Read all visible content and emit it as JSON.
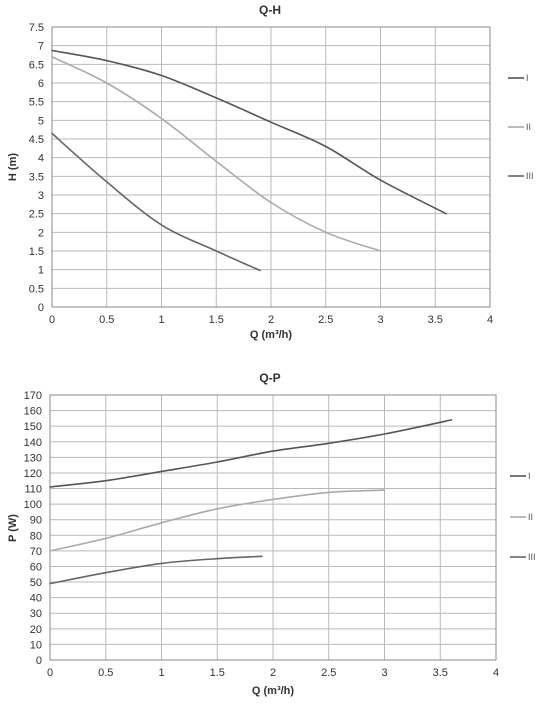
{
  "chart_data": [
    {
      "type": "line",
      "title": "Q-H",
      "xlabel": "Q (m³/h)",
      "ylabel": "H (m)",
      "xlim": [
        0,
        4
      ],
      "ylim": [
        0,
        7.5
      ],
      "xticks": [
        0,
        0.5,
        1,
        1.5,
        2,
        2.5,
        3,
        3.5,
        4
      ],
      "yticks": [
        0,
        0.5,
        1,
        1.5,
        2,
        2.5,
        3,
        3.5,
        4,
        4.5,
        5,
        5.5,
        6,
        6.5,
        7,
        7.5
      ],
      "grid": true,
      "legend_position": "right",
      "series": [
        {
          "name": "I",
          "color": "#555555",
          "x": [
            0,
            0.5,
            1,
            1.5,
            2,
            2.5,
            3,
            3.6
          ],
          "y": [
            6.87,
            6.6,
            6.2,
            5.6,
            4.95,
            4.3,
            3.4,
            2.5
          ]
        },
        {
          "name": "II",
          "color": "#aaaaaa",
          "x": [
            0,
            0.5,
            1,
            1.5,
            2,
            2.5,
            3
          ],
          "y": [
            6.7,
            6.0,
            5.05,
            3.9,
            2.8,
            2.0,
            1.5
          ]
        },
        {
          "name": "III",
          "color": "#666666",
          "x": [
            0,
            0.5,
            1,
            1.5,
            1.9
          ],
          "y": [
            4.65,
            3.35,
            2.2,
            1.5,
            0.98
          ]
        }
      ]
    },
    {
      "type": "line",
      "title": "Q-P",
      "xlabel": "Q (m³/h)",
      "ylabel": "P (W)",
      "xlim": [
        0,
        4
      ],
      "ylim": [
        0,
        170
      ],
      "xticks": [
        0,
        0.5,
        1,
        1.5,
        2,
        2.5,
        3,
        3.5,
        4
      ],
      "yticks": [
        0,
        10,
        20,
        30,
        40,
        50,
        60,
        70,
        80,
        90,
        100,
        110,
        120,
        130,
        140,
        150,
        160,
        170
      ],
      "grid": true,
      "legend_position": "right",
      "series": [
        {
          "name": "I",
          "color": "#555555",
          "x": [
            0,
            0.5,
            1,
            1.5,
            2,
            2.5,
            3,
            3.6
          ],
          "y": [
            111,
            115,
            121,
            127,
            134,
            139,
            145,
            154
          ]
        },
        {
          "name": "II",
          "color": "#aaaaaa",
          "x": [
            0,
            0.5,
            1,
            1.5,
            2,
            2.5,
            3
          ],
          "y": [
            70,
            78,
            88,
            97,
            103,
            107.5,
            109
          ]
        },
        {
          "name": "III",
          "color": "#666666",
          "x": [
            0,
            0.5,
            1,
            1.5,
            1.9
          ],
          "y": [
            49,
            56,
            62,
            65,
            66.5
          ]
        }
      ]
    }
  ]
}
